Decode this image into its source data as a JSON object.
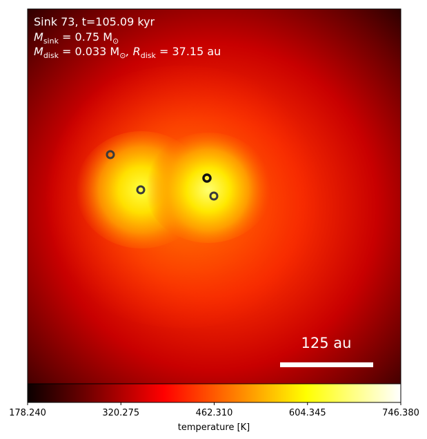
{
  "panel": {
    "line1": "Sink 73, t=105.09 kyr",
    "line2_prefix": "M",
    "line2_sub": "sink",
    "line2_rest": " = 0.75 M",
    "line2_sym": "⊙",
    "line3_prefix": "M",
    "line3_sub": "disk",
    "line3_mid": " = 0.033 M",
    "line3_sym": "⊙",
    "line3_comma": ", R",
    "line3_sub2": "disk",
    "line3_rest": " = 37.15 au",
    "scalebar_label": "125 au",
    "scalebar_au": 125
  },
  "sinks": [
    {
      "id": "sink-a",
      "bold": false
    },
    {
      "id": "sink-b",
      "bold": false
    },
    {
      "id": "sink-c",
      "bold": true
    },
    {
      "id": "sink-d",
      "bold": false
    }
  ],
  "colorbar": {
    "label": "temperature [K]",
    "min": 178.24,
    "max": 746.38,
    "ticks": [
      "178.240",
      "320.275",
      "462.310",
      "604.345",
      "746.380"
    ],
    "colormap": "hot"
  },
  "colors": {
    "text_on_image": "#ffffff",
    "scalebar": "#ffffff",
    "sink_marker": "#3a3a3a"
  }
}
